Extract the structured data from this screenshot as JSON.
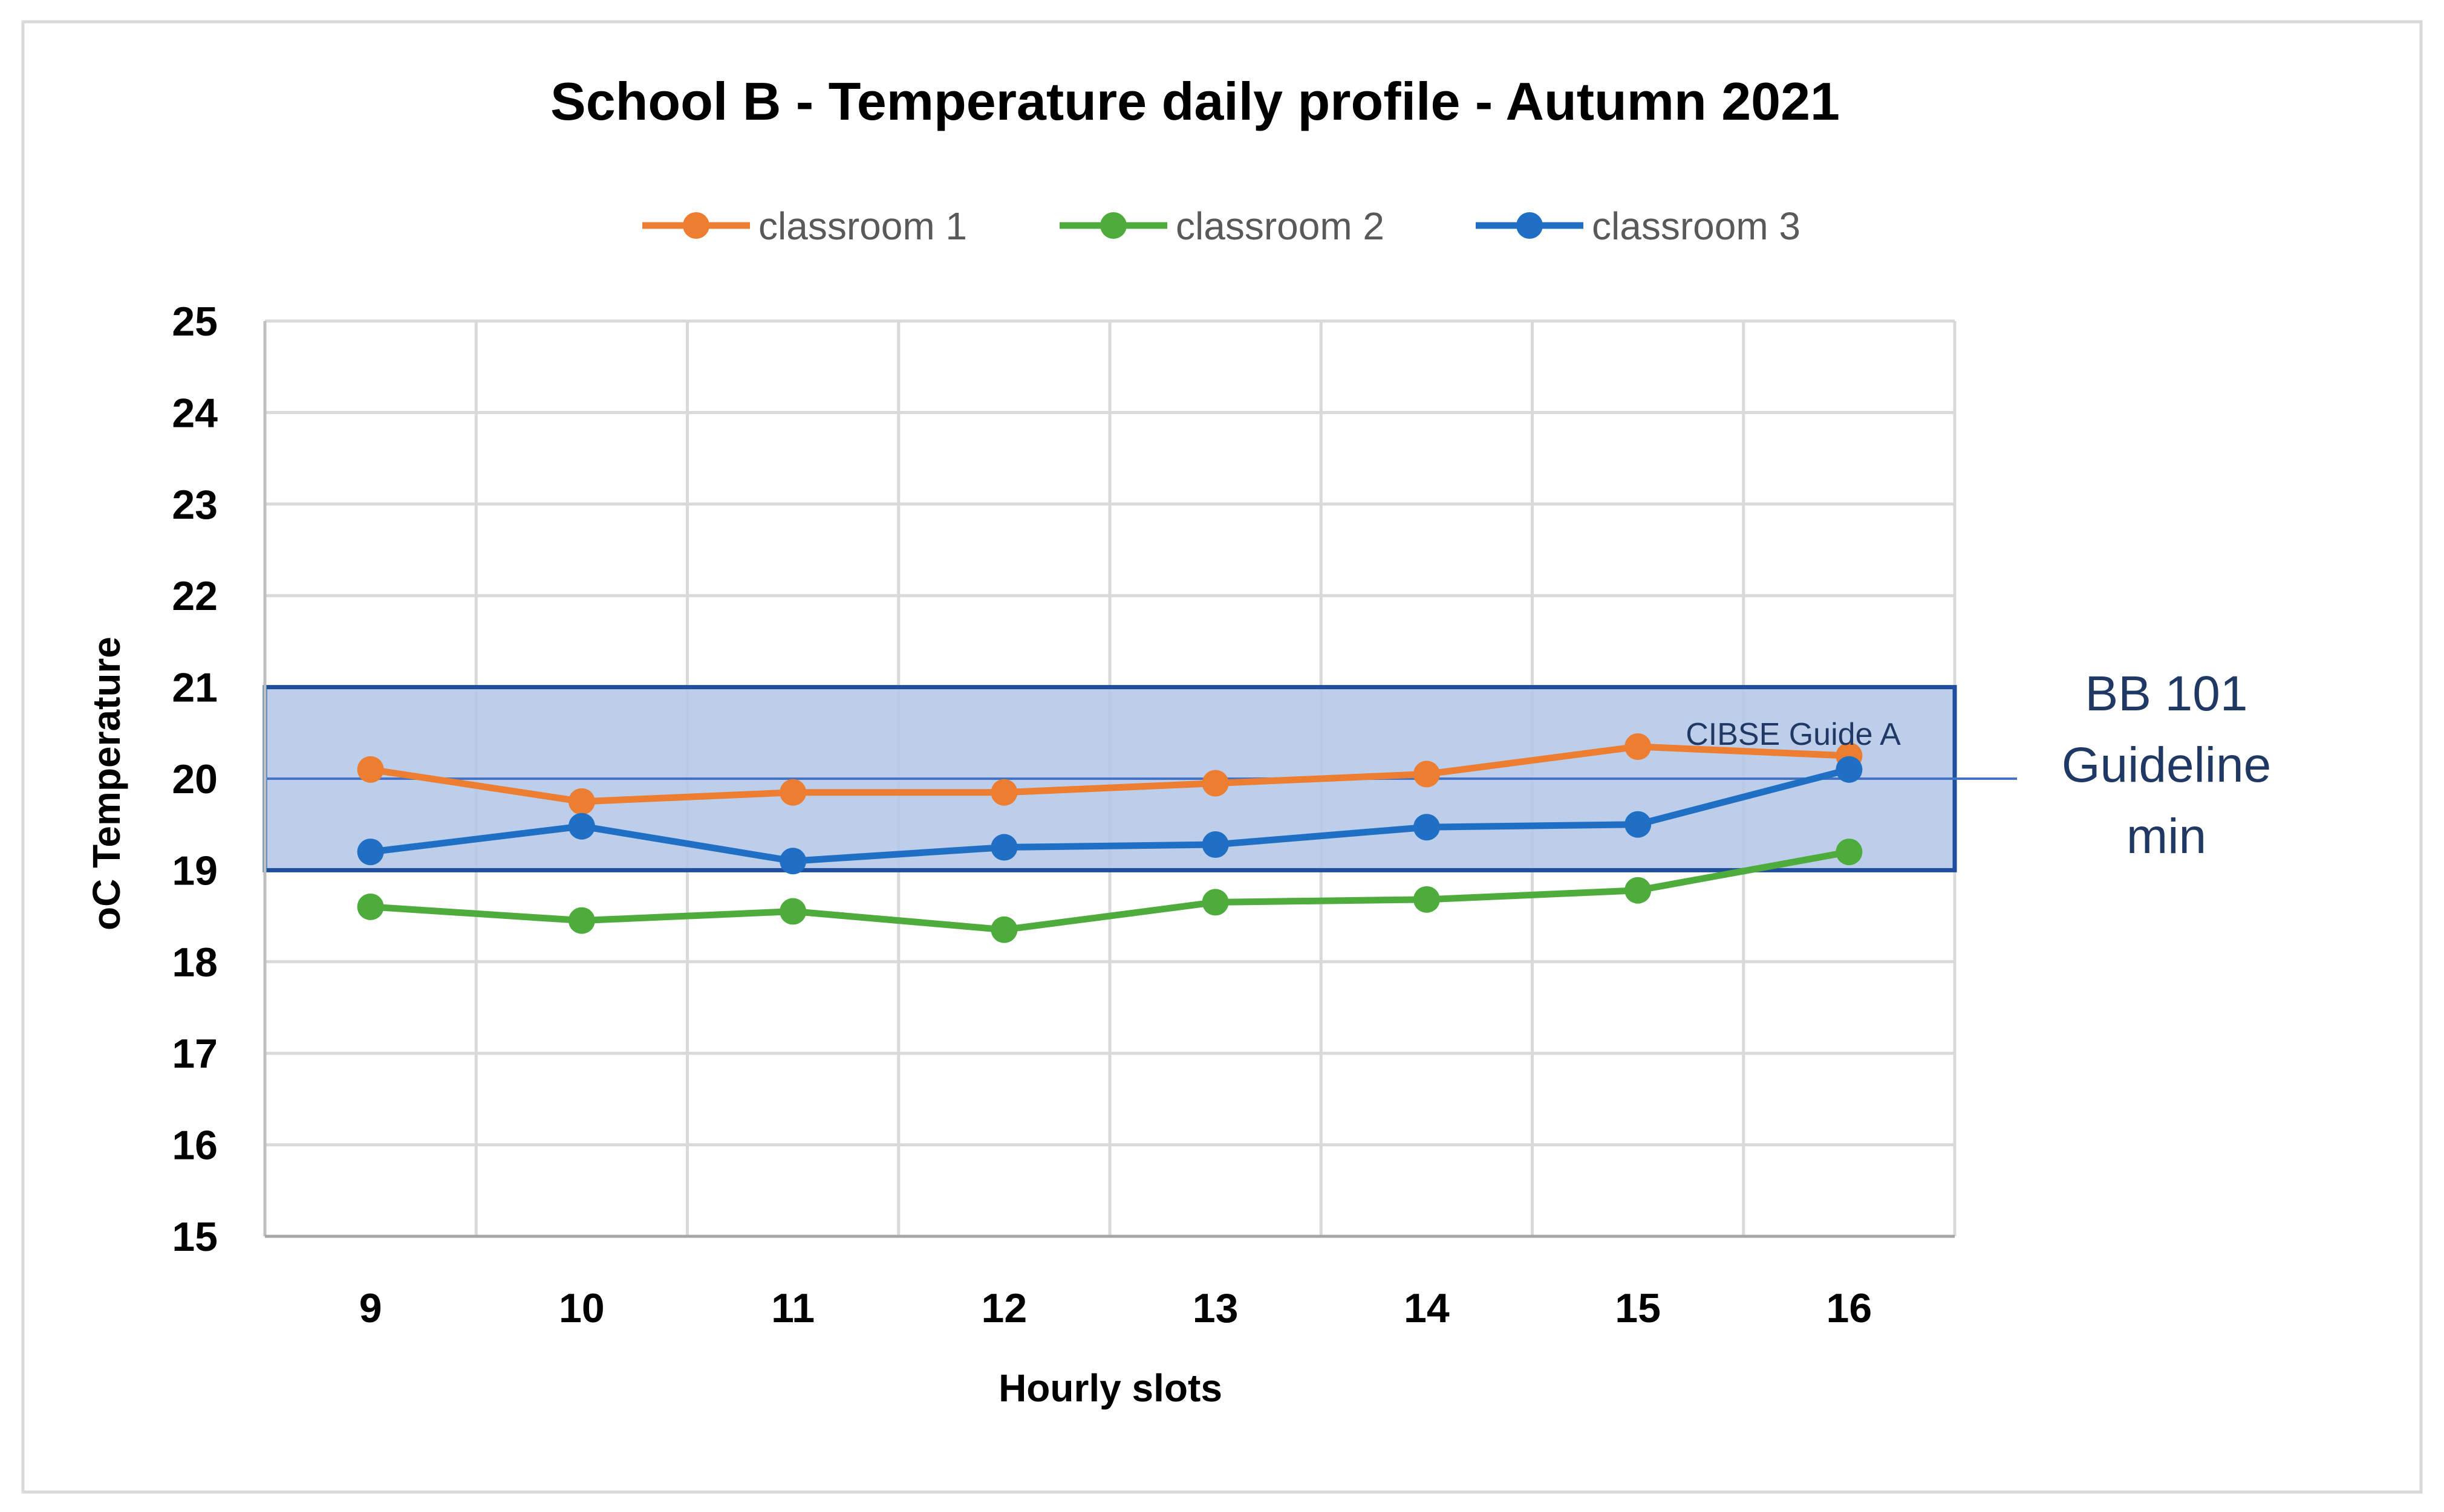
{
  "chart_data": {
    "type": "line",
    "title": "School B - Temperature daily profile - Autumn 2021",
    "xlabel": "Hourly slots",
    "ylabel": "oC Temperature",
    "categories": [
      "9",
      "10",
      "11",
      "12",
      "13",
      "14",
      "15",
      "16"
    ],
    "ylim": [
      15,
      25
    ],
    "yticks": [
      "15",
      "16",
      "17",
      "18",
      "19",
      "20",
      "21",
      "22",
      "23",
      "24",
      "25"
    ],
    "grid": true,
    "legend_position": "top",
    "series": [
      {
        "name": "classroom 1",
        "color": "#ed7d31",
        "values": [
          20.1,
          19.75,
          19.85,
          19.85,
          19.95,
          20.05,
          20.35,
          20.25
        ]
      },
      {
        "name": "classroom 2",
        "color": "#4eac3c",
        "values": [
          18.6,
          18.45,
          18.55,
          18.35,
          18.65,
          18.68,
          18.78,
          19.2
        ]
      },
      {
        "name": "classroom 3",
        "color": "#1f6fc5",
        "values": [
          19.2,
          19.48,
          19.1,
          19.25,
          19.28,
          19.47,
          19.5,
          20.1
        ]
      }
    ],
    "bands": [
      {
        "label": "CIBSE Guide A",
        "from": 19,
        "to": 21,
        "fill": "#b4c7e7",
        "border": "#1f4e9c"
      }
    ],
    "reference_lines": [
      {
        "value": 20,
        "label_lines": [
          "BB 101",
          "Guideline",
          "min"
        ],
        "color": "#4472c4"
      }
    ]
  }
}
